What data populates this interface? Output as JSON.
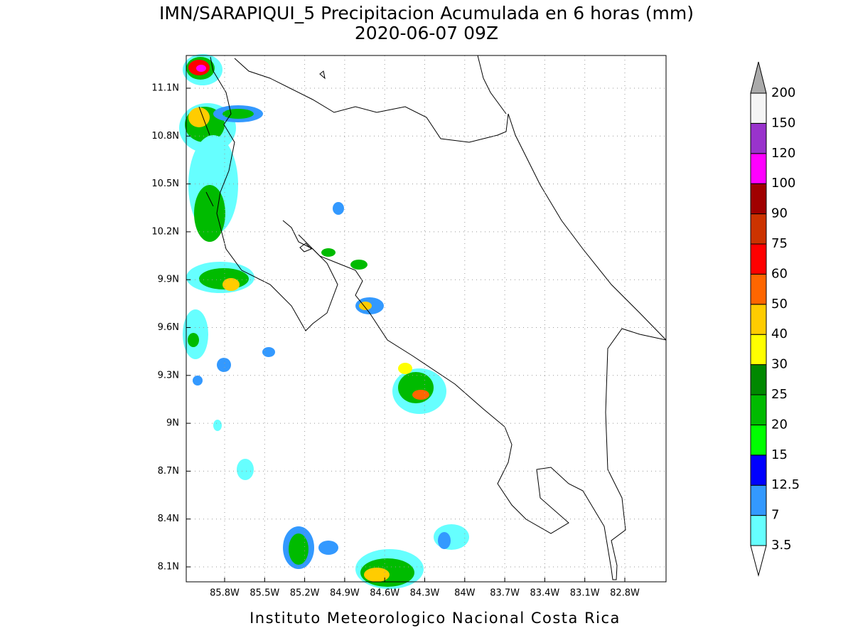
{
  "title": "IMN/SARAPIQUI_5 Precipitacion Acumulada en 6 horas (mm)",
  "subtitle": "2020-06-07 09Z",
  "footer": "Instituto Meteorologico Nacional Costa Rica",
  "lat_ticks": [
    "11.1N",
    "10.8N",
    "10.5N",
    "10.2N",
    "9.9N",
    "9.6N",
    "9.3N",
    "9N",
    "8.7N",
    "8.4N",
    "8.1N"
  ],
  "lon_ticks": [
    "85.8W",
    "85.5W",
    "85.2W",
    "84.9W",
    "84.6W",
    "84.3W",
    "84W",
    "83.7W",
    "83.4W",
    "83.1W",
    "82.8W"
  ],
  "colorbar": {
    "levels": [
      3.5,
      7,
      12.5,
      15,
      20,
      25,
      30,
      40,
      50,
      60,
      75,
      90,
      100,
      120,
      150,
      200
    ],
    "colors": [
      "#ffffff",
      "#66ffff",
      "#3399ff",
      "#0000ff",
      "#00ff00",
      "#00bb00",
      "#008800",
      "#ffff00",
      "#ffcc00",
      "#ff6600",
      "#ff0000",
      "#cc3300",
      "#a00000",
      "#ff00ff",
      "#9933cc",
      "#f5f5f5",
      "#aaaaaa"
    ]
  }
}
